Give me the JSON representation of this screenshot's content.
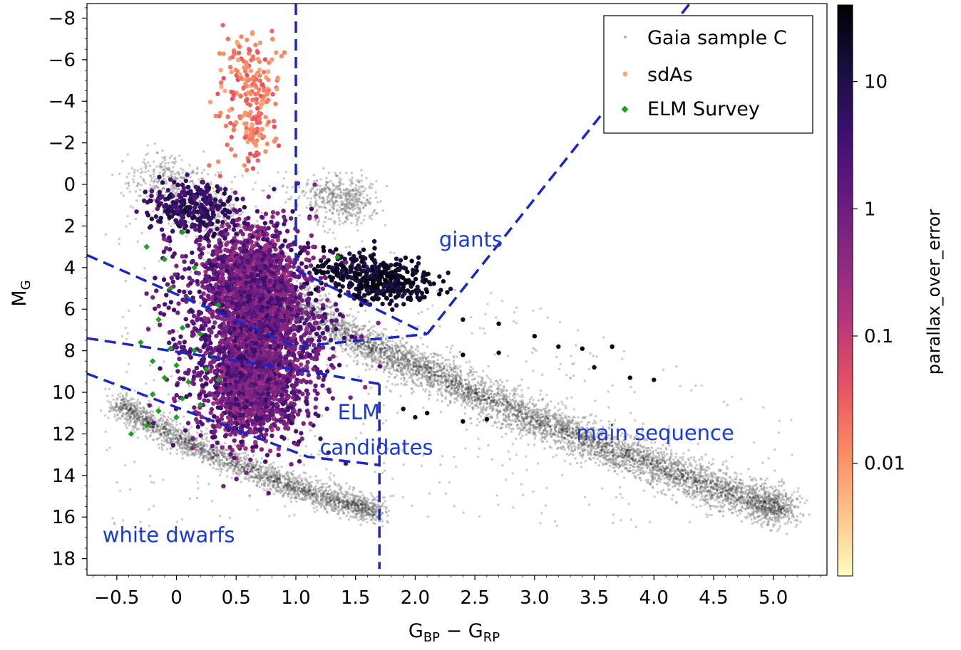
{
  "chart_data": {
    "type": "scatter",
    "title": "",
    "xlabel": "G",
    "xlabel_sub1": "BP",
    "xlabel_mid": " − G",
    "xlabel_sub2": "RP",
    "ylabel": "M",
    "ylabel_sub": "G",
    "xlim": [
      -0.75,
      5.45
    ],
    "ylim": [
      18.8,
      -8.7
    ],
    "y_inverted": true,
    "xticks": [
      -0.5,
      0,
      0.5,
      1.0,
      1.5,
      2.0,
      2.5,
      3.0,
      3.5,
      4.0,
      4.5,
      5.0
    ],
    "xtick_labels": [
      "−0.5",
      "0",
      "0.5",
      "1.0",
      "1.5",
      "2.0",
      "2.5",
      "3.0",
      "3.5",
      "4.0",
      "4.5",
      "5.0"
    ],
    "yticks": [
      -8,
      -6,
      -4,
      -2,
      0,
      2,
      4,
      6,
      8,
      10,
      12,
      14,
      16,
      18
    ],
    "ytick_labels": [
      "−8",
      "−6",
      "−4",
      "−2",
      "0",
      "2",
      "4",
      "6",
      "8",
      "10",
      "12",
      "14",
      "16",
      "18"
    ],
    "grid": false,
    "legend": {
      "position": "top-right",
      "entries": [
        {
          "label": "Gaia sample C",
          "color": "#b0b0b0",
          "marker": "point"
        },
        {
          "label": "sdAs",
          "color": "#f6a86c",
          "marker": "point"
        },
        {
          "label": "ELM Survey",
          "color": "#1ca21c",
          "marker": "diamond"
        }
      ]
    },
    "colorbar": {
      "label": "parallax_over_error",
      "scale": "log",
      "range": [
        0.0013,
        40
      ],
      "ticks": [
        0.01,
        0.1,
        1,
        10
      ],
      "tick_labels": [
        "0.01",
        "0.1",
        "1",
        "10"
      ],
      "colormap": "magma_r",
      "stops": [
        "#fcfdbf",
        "#fec287",
        "#fb8861",
        "#e75263",
        "#b73779",
        "#8c2981",
        "#641a80",
        "#3b0f70",
        "#180f3e",
        "#000004"
      ]
    },
    "annotations": [
      {
        "text": "giants",
        "x": 2.2,
        "y": 3.0
      },
      {
        "text": "ELM",
        "x": 1.35,
        "y": 11.3
      },
      {
        "text": "candidates",
        "x": 1.2,
        "y": 13.0
      },
      {
        "text": "main sequence",
        "x": 3.35,
        "y": 12.3
      },
      {
        "text": "white dwarfs",
        "x": -0.62,
        "y": 17.2
      }
    ],
    "boundary_lines": [
      {
        "name": "giants-vertical",
        "points": [
          [
            1.0,
            -8.7
          ],
          [
            1.0,
            3.8
          ]
        ]
      },
      {
        "name": "giants-lower",
        "points": [
          [
            1.0,
            4.1
          ],
          [
            2.1,
            7.2
          ]
        ]
      },
      {
        "name": "giants-diagonal",
        "points": [
          [
            2.1,
            7.2
          ],
          [
            4.3,
            -8.7
          ]
        ]
      },
      {
        "name": "elm-upper",
        "points": [
          [
            -0.75,
            3.4
          ],
          [
            1.0,
            7.8
          ],
          [
            2.1,
            7.2
          ]
        ]
      },
      {
        "name": "elm-middle",
        "points": [
          [
            -0.75,
            7.4
          ],
          [
            1.1,
            9.0
          ],
          [
            1.7,
            9.6
          ]
        ]
      },
      {
        "name": "elm-lower",
        "points": [
          [
            -0.75,
            9.1
          ],
          [
            1.1,
            13.1
          ],
          [
            1.7,
            13.5
          ]
        ]
      },
      {
        "name": "elm-right",
        "points": [
          [
            1.7,
            9.6
          ],
          [
            1.7,
            18.5
          ]
        ]
      }
    ],
    "series": [
      {
        "name": "Gaia sample C",
        "color": "#b0b0b0",
        "structures": [
          {
            "feature": "main sequence",
            "points": [
              [
                0.9,
                5.2
              ],
              [
                1.3,
                6.8
              ],
              [
                1.7,
                8.0
              ],
              [
                2.1,
                9.0
              ],
              [
                2.5,
                10.0
              ],
              [
                2.9,
                11.1
              ],
              [
                3.3,
                12.0
              ],
              [
                3.7,
                12.9
              ],
              [
                4.1,
                13.7
              ],
              [
                4.5,
                14.6
              ],
              [
                4.9,
                15.3
              ],
              [
                5.1,
                15.7
              ]
            ]
          },
          {
            "feature": "white dwarf sequence",
            "points": [
              [
                -0.5,
                10.5
              ],
              [
                -0.2,
                11.6
              ],
              [
                0.2,
                12.7
              ],
              [
                0.6,
                13.7
              ],
              [
                1.0,
                14.6
              ],
              [
                1.4,
                15.3
              ],
              [
                1.7,
                15.8
              ]
            ]
          },
          {
            "feature": "giant clump",
            "points": [
              [
                1.1,
                0.3
              ],
              [
                1.4,
                0.4
              ],
              [
                1.5,
                0.9
              ],
              [
                1.3,
                1.3
              ]
            ]
          },
          {
            "feature": "subgiants",
            "points": [
              [
                -0.2,
                -0.7
              ],
              [
                0.0,
                0.2
              ],
              [
                0.2,
                1.2
              ],
              [
                0.4,
                2.0
              ]
            ]
          }
        ]
      },
      {
        "name": "sdAs",
        "color_by": "parallax_over_error",
        "groups": [
          {
            "feature": "main clump",
            "points": [
              [
                0.6,
                3.5
              ],
              [
                0.65,
                5.0
              ],
              [
                0.7,
                7.0
              ],
              [
                0.65,
                9.0
              ],
              [
                0.6,
                11.0
              ]
            ]
          },
          {
            "feature": "upper plume",
            "points": [
              [
                0.62,
                -1.5
              ],
              [
                0.6,
                -4.0
              ],
              [
                0.58,
                -6.5
              ]
            ]
          },
          {
            "feature": "left clump",
            "points": [
              [
                0.05,
                0.8
              ],
              [
                0.2,
                1.5
              ]
            ]
          },
          {
            "feature": "giant clump",
            "points": [
              [
                1.4,
                3.8
              ],
              [
                1.7,
                4.6
              ],
              [
                1.9,
                5.0
              ]
            ]
          }
        ]
      },
      {
        "name": "ELM Survey",
        "color": "#1ca21c",
        "points": [
          [
            -0.25,
            3.0
          ],
          [
            -0.1,
            3.6
          ],
          [
            0.05,
            2.3
          ],
          [
            0.15,
            4.0
          ],
          [
            -0.05,
            5.0
          ],
          [
            0.1,
            5.5
          ],
          [
            0.35,
            5.8
          ],
          [
            -0.15,
            6.5
          ],
          [
            0.05,
            6.9
          ],
          [
            0.2,
            7.2
          ],
          [
            -0.3,
            7.6
          ],
          [
            -0.05,
            7.9
          ],
          [
            0.15,
            8.0
          ],
          [
            0.3,
            8.3
          ],
          [
            -0.2,
            8.5
          ],
          [
            0.0,
            8.7
          ],
          [
            0.25,
            8.9
          ],
          [
            -0.1,
            9.3
          ],
          [
            0.1,
            9.5
          ],
          [
            0.35,
            9.4
          ],
          [
            -0.2,
            10.1
          ],
          [
            0.05,
            10.3
          ],
          [
            0.2,
            10.6
          ],
          [
            -0.15,
            10.9
          ],
          [
            0.0,
            11.2
          ],
          [
            -0.25,
            11.6
          ],
          [
            -0.38,
            12.0
          ],
          [
            1.35,
            3.5
          ]
        ]
      }
    ]
  }
}
